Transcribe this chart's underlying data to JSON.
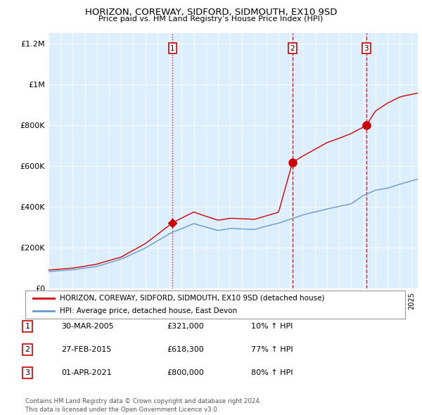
{
  "title": "HORIZON, COREWAY, SIDFORD, SIDMOUTH, EX10 9SD",
  "subtitle": "Price paid vs. HM Land Registry’s House Price Index (HPI)",
  "legend_line1": "HORIZON, COREWAY, SIDFORD, SIDMOUTH, EX10 9SD (detached house)",
  "legend_line2": "HPI: Average price, detached house, East Devon",
  "red_color": "#cc0000",
  "blue_color": "#6699cc",
  "bg_color": "#ddeeff",
  "sale_points": [
    {
      "label": "1",
      "year": 2005.25,
      "value": 321000,
      "marker": "D",
      "linestyle": ":"
    },
    {
      "label": "2",
      "year": 2015.15,
      "value": 618300,
      "marker": "o",
      "linestyle": "--"
    },
    {
      "label": "3",
      "year": 2021.25,
      "value": 800000,
      "marker": "o",
      "linestyle": "--"
    }
  ],
  "table_rows": [
    {
      "num": "1",
      "date": "30-MAR-2005",
      "price": "£321,000",
      "hpi": "10% ↑ HPI"
    },
    {
      "num": "2",
      "date": "27-FEB-2015",
      "price": "£618,300",
      "hpi": "77% ↑ HPI"
    },
    {
      "num": "3",
      "date": "01-APR-2021",
      "price": "£800,000",
      "hpi": "80% ↑ HPI"
    }
  ],
  "footer": "Contains HM Land Registry data © Crown copyright and database right 2024.\nThis data is licensed under the Open Government Licence v3.0.",
  "ylim": [
    0,
    1250000
  ],
  "yticks": [
    0,
    200000,
    400000,
    600000,
    800000,
    1000000,
    1200000
  ],
  "ytick_labels": [
    "£0",
    "£200K",
    "£400K",
    "£600K",
    "£800K",
    "£1M",
    "£1.2M"
  ],
  "xmin": 1995,
  "xmax": 2025.5,
  "hpi_key_years": [
    1995,
    1997,
    1999,
    2001,
    2003,
    2005,
    2007,
    2009,
    2010,
    2012,
    2014,
    2016,
    2018,
    2020,
    2021,
    2022,
    2023,
    2024,
    2025.5
  ],
  "hpi_key_vals": [
    82000,
    92000,
    110000,
    145000,
    200000,
    270000,
    320000,
    285000,
    295000,
    290000,
    320000,
    360000,
    390000,
    415000,
    455000,
    480000,
    490000,
    510000,
    535000
  ],
  "prop_key_years": [
    1995,
    1997,
    1999,
    2001,
    2003,
    2005.25,
    2007,
    2009,
    2010,
    2012,
    2014,
    2015.15,
    2016,
    2018,
    2020,
    2021.25,
    2022,
    2023,
    2024,
    2025.5
  ],
  "prop_key_vals": [
    90000,
    100000,
    120000,
    155000,
    220000,
    321000,
    375000,
    335000,
    345000,
    340000,
    375000,
    618300,
    650000,
    715000,
    760000,
    800000,
    870000,
    910000,
    940000,
    960000
  ]
}
